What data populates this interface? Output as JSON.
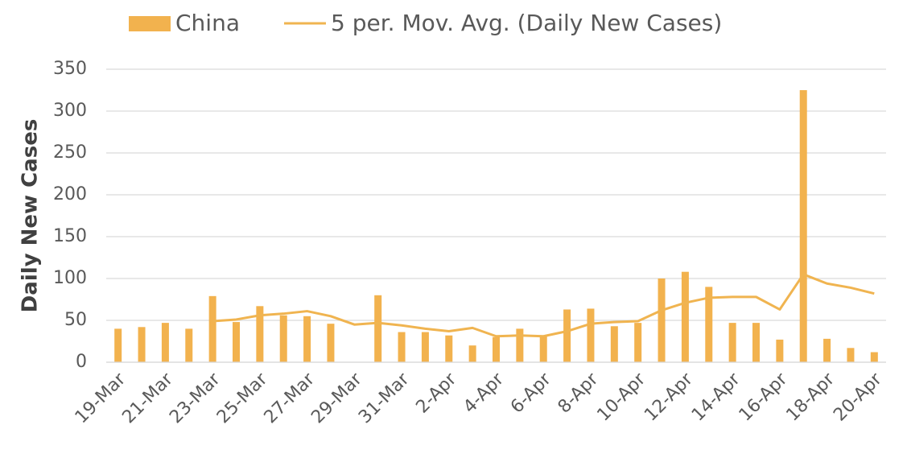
{
  "chart_data": {
    "type": "bar",
    "y_label": "Daily New Cases",
    "categories": [
      "19-Mar",
      null,
      "21-Mar",
      null,
      "23-Mar",
      null,
      "25-Mar",
      null,
      "27-Mar",
      null,
      "29-Mar",
      null,
      "31-Mar",
      null,
      "2-Apr",
      null,
      "4-Apr",
      null,
      "6-Apr",
      null,
      "8-Apr",
      null,
      "10-Apr",
      null,
      "12-Apr",
      null,
      "14-Apr",
      null,
      "16-Apr",
      null,
      "18-Apr",
      null,
      "20-Apr"
    ],
    "series": [
      {
        "name": "China",
        "type": "bar",
        "color": "#f2b24e",
        "values": [
          40,
          42,
          47,
          40,
          79,
          48,
          67,
          56,
          55,
          46,
          null,
          80,
          36,
          36,
          32,
          20,
          30,
          40,
          31,
          63,
          64,
          43,
          47,
          100,
          108,
          90,
          47,
          47,
          27,
          325,
          28,
          17,
          12
        ]
      },
      {
        "name": "5 per. Mov. Avg. (Daily New Cases)",
        "type": "line",
        "color": "#f0b450",
        "values": [
          null,
          null,
          null,
          null,
          49,
          51,
          56,
          58,
          61,
          55,
          45,
          47,
          44,
          40,
          37,
          41,
          31,
          32,
          31,
          37,
          46,
          48,
          49,
          62,
          71,
          77,
          78,
          78,
          63,
          105,
          94,
          89,
          82
        ]
      }
    ],
    "ylim": [
      0,
      350
    ],
    "yticks": [
      0,
      50,
      100,
      150,
      200,
      250,
      300,
      350
    ],
    "grid": true,
    "legend": "top"
  }
}
